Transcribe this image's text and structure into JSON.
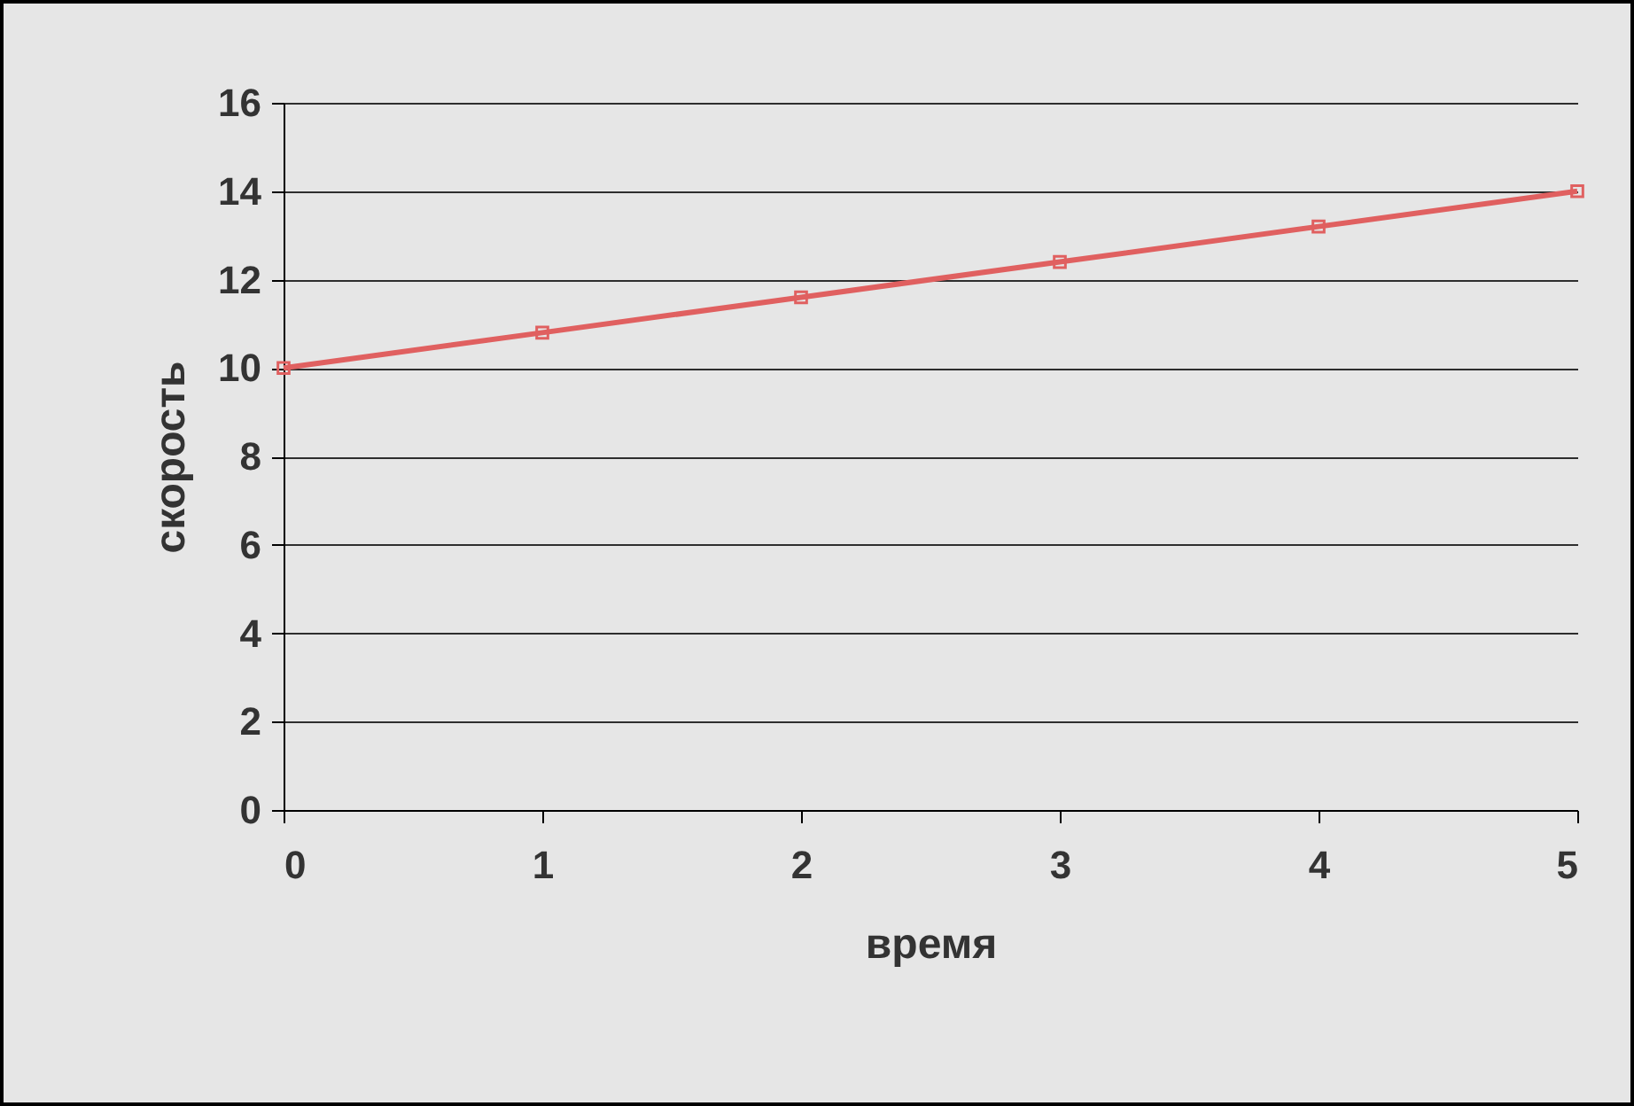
{
  "chart_data": {
    "type": "line",
    "xlabel": "время",
    "ylabel": "скорость",
    "x": [
      0,
      1,
      2,
      3,
      4,
      5
    ],
    "series": [
      {
        "color": "#e06060",
        "values": [
          10,
          10.8,
          11.6,
          12.4,
          13.2,
          14
        ]
      }
    ],
    "xlim": [
      0,
      5
    ],
    "xticks": [
      0,
      1,
      2,
      3,
      4,
      5
    ],
    "ylim": [
      0,
      16
    ],
    "yticks": [
      0,
      2,
      4,
      6,
      8,
      10,
      12,
      14,
      16
    ],
    "grid": "y",
    "marker": "square",
    "legend": false
  }
}
